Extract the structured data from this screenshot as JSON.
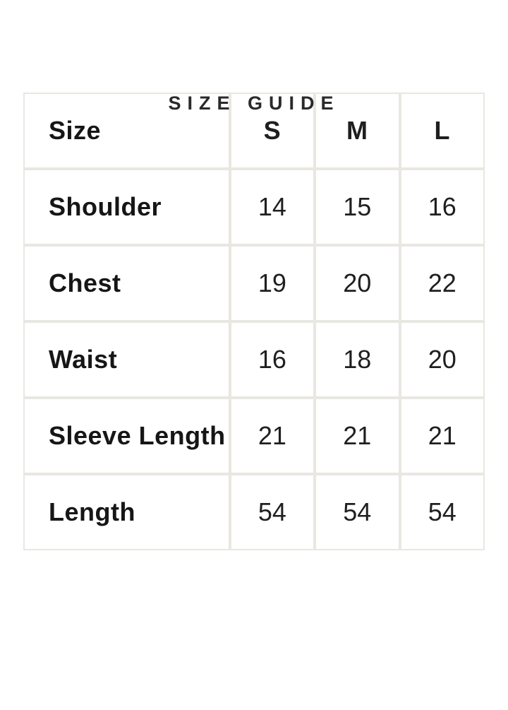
{
  "page": {
    "title": "SIZE GUIDE"
  },
  "size_table": {
    "header": {
      "label": "Size",
      "columns": [
        "S",
        "M",
        "L"
      ]
    },
    "rows": [
      {
        "label": "Shoulder",
        "values": [
          "14",
          "15",
          "16"
        ]
      },
      {
        "label": "Chest",
        "values": [
          "19",
          "20",
          "22"
        ]
      },
      {
        "label": "Waist",
        "values": [
          "16",
          "18",
          "20"
        ]
      },
      {
        "label": "Sleeve Length",
        "values": [
          "21",
          "21",
          "21"
        ]
      },
      {
        "label": "Length",
        "values": [
          "54",
          "54",
          "54"
        ]
      }
    ]
  },
  "colors": {
    "background": "#ffffff",
    "grid_border": "#e9e7e1",
    "text": "#1c1c1c"
  }
}
